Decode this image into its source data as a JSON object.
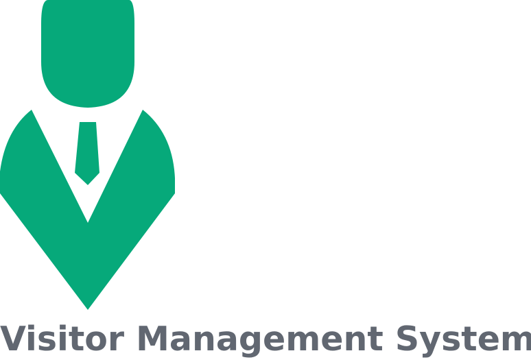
{
  "logo": {
    "title": "Visitor Management System",
    "icon": "person-with-tie-icon",
    "icon_color": "#06a97a",
    "title_color": "#616771"
  }
}
